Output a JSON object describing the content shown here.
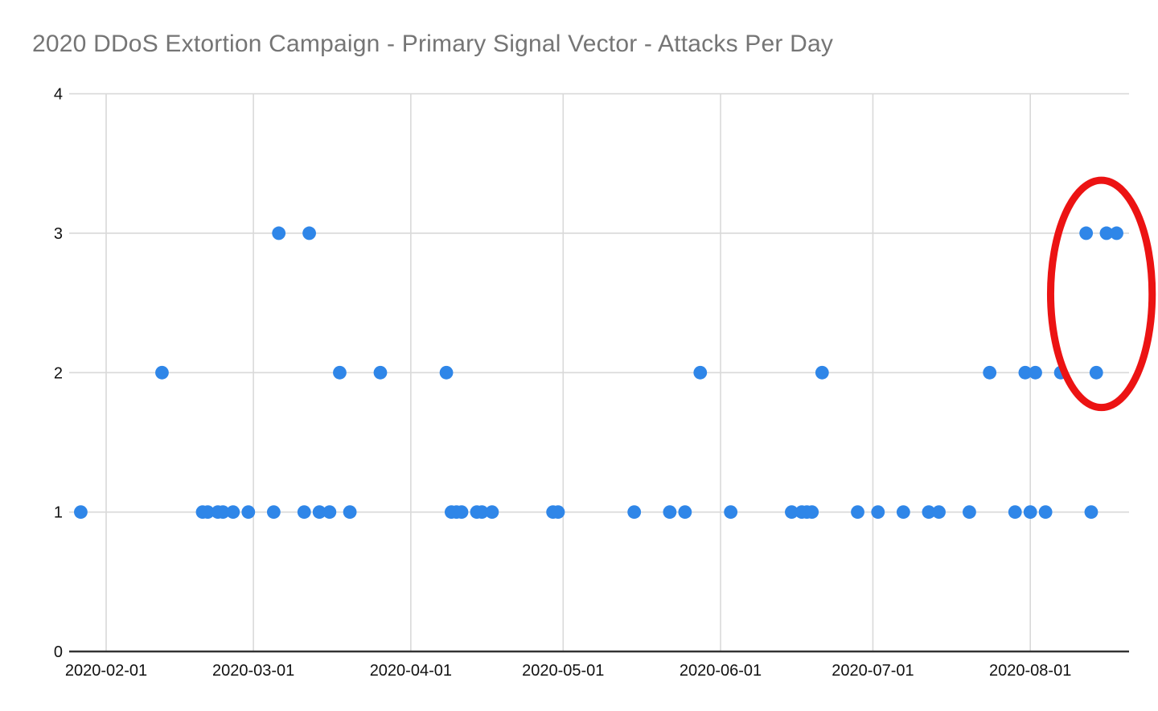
{
  "chart_data": {
    "type": "scatter",
    "title": "2020 DDoS Extortion Campaign - Primary Signal Vector - Attacks Per Day",
    "title_color": "#757575",
    "x_axis": {
      "tick_labels": [
        "2020-02-01",
        "2020-03-01",
        "2020-04-01",
        "2020-05-01",
        "2020-06-01",
        "2020-07-01",
        "2020-08-01"
      ],
      "visible_date_range": [
        "2020-01-25",
        "2020-08-21"
      ],
      "gridlines": true
    },
    "y_axis": {
      "tick_labels": [
        "0",
        "1",
        "2",
        "3",
        "4"
      ],
      "min": 0,
      "max": 4,
      "gridlines": true
    },
    "legend": "none",
    "series": [
      {
        "name": "attacks-per-day",
        "color": "#2f86e8",
        "points": [
          [
            "2020-01-27",
            1
          ],
          [
            "2020-02-12",
            2
          ],
          [
            "2020-02-20",
            1
          ],
          [
            "2020-02-21",
            1
          ],
          [
            "2020-02-23",
            1
          ],
          [
            "2020-02-24",
            1
          ],
          [
            "2020-02-26",
            1
          ],
          [
            "2020-02-29",
            1
          ],
          [
            "2020-03-05",
            1
          ],
          [
            "2020-03-06",
            3
          ],
          [
            "2020-03-11",
            1
          ],
          [
            "2020-03-12",
            3
          ],
          [
            "2020-03-14",
            1
          ],
          [
            "2020-03-16",
            1
          ],
          [
            "2020-03-18",
            2
          ],
          [
            "2020-03-20",
            1
          ],
          [
            "2020-03-26",
            2
          ],
          [
            "2020-04-08",
            2
          ],
          [
            "2020-04-09",
            1
          ],
          [
            "2020-04-10",
            1
          ],
          [
            "2020-04-11",
            1
          ],
          [
            "2020-04-14",
            1
          ],
          [
            "2020-04-15",
            1
          ],
          [
            "2020-04-17",
            1
          ],
          [
            "2020-04-29",
            1
          ],
          [
            "2020-04-30",
            1
          ],
          [
            "2020-05-15",
            1
          ],
          [
            "2020-05-22",
            1
          ],
          [
            "2020-05-25",
            1
          ],
          [
            "2020-05-28",
            2
          ],
          [
            "2020-06-03",
            1
          ],
          [
            "2020-06-15",
            1
          ],
          [
            "2020-06-17",
            1
          ],
          [
            "2020-06-18",
            1
          ],
          [
            "2020-06-19",
            1
          ],
          [
            "2020-06-21",
            2
          ],
          [
            "2020-06-28",
            1
          ],
          [
            "2020-07-02",
            1
          ],
          [
            "2020-07-07",
            1
          ],
          [
            "2020-07-12",
            1
          ],
          [
            "2020-07-14",
            1
          ],
          [
            "2020-07-20",
            1
          ],
          [
            "2020-07-24",
            2
          ],
          [
            "2020-07-29",
            1
          ],
          [
            "2020-07-31",
            2
          ],
          [
            "2020-08-01",
            1
          ],
          [
            "2020-08-02",
            2
          ],
          [
            "2020-08-04",
            1
          ],
          [
            "2020-08-07",
            2
          ],
          [
            "2020-08-12",
            3
          ],
          [
            "2020-08-13",
            1
          ],
          [
            "2020-08-14",
            2
          ],
          [
            "2020-08-16",
            3
          ],
          [
            "2020-08-18",
            3
          ]
        ]
      }
    ],
    "annotation": {
      "shape": "ellipse",
      "color": "#ec1313",
      "date_span": [
        "2020-08-05",
        "2020-08-25"
      ],
      "value_span": [
        1.75,
        3.38
      ]
    }
  }
}
